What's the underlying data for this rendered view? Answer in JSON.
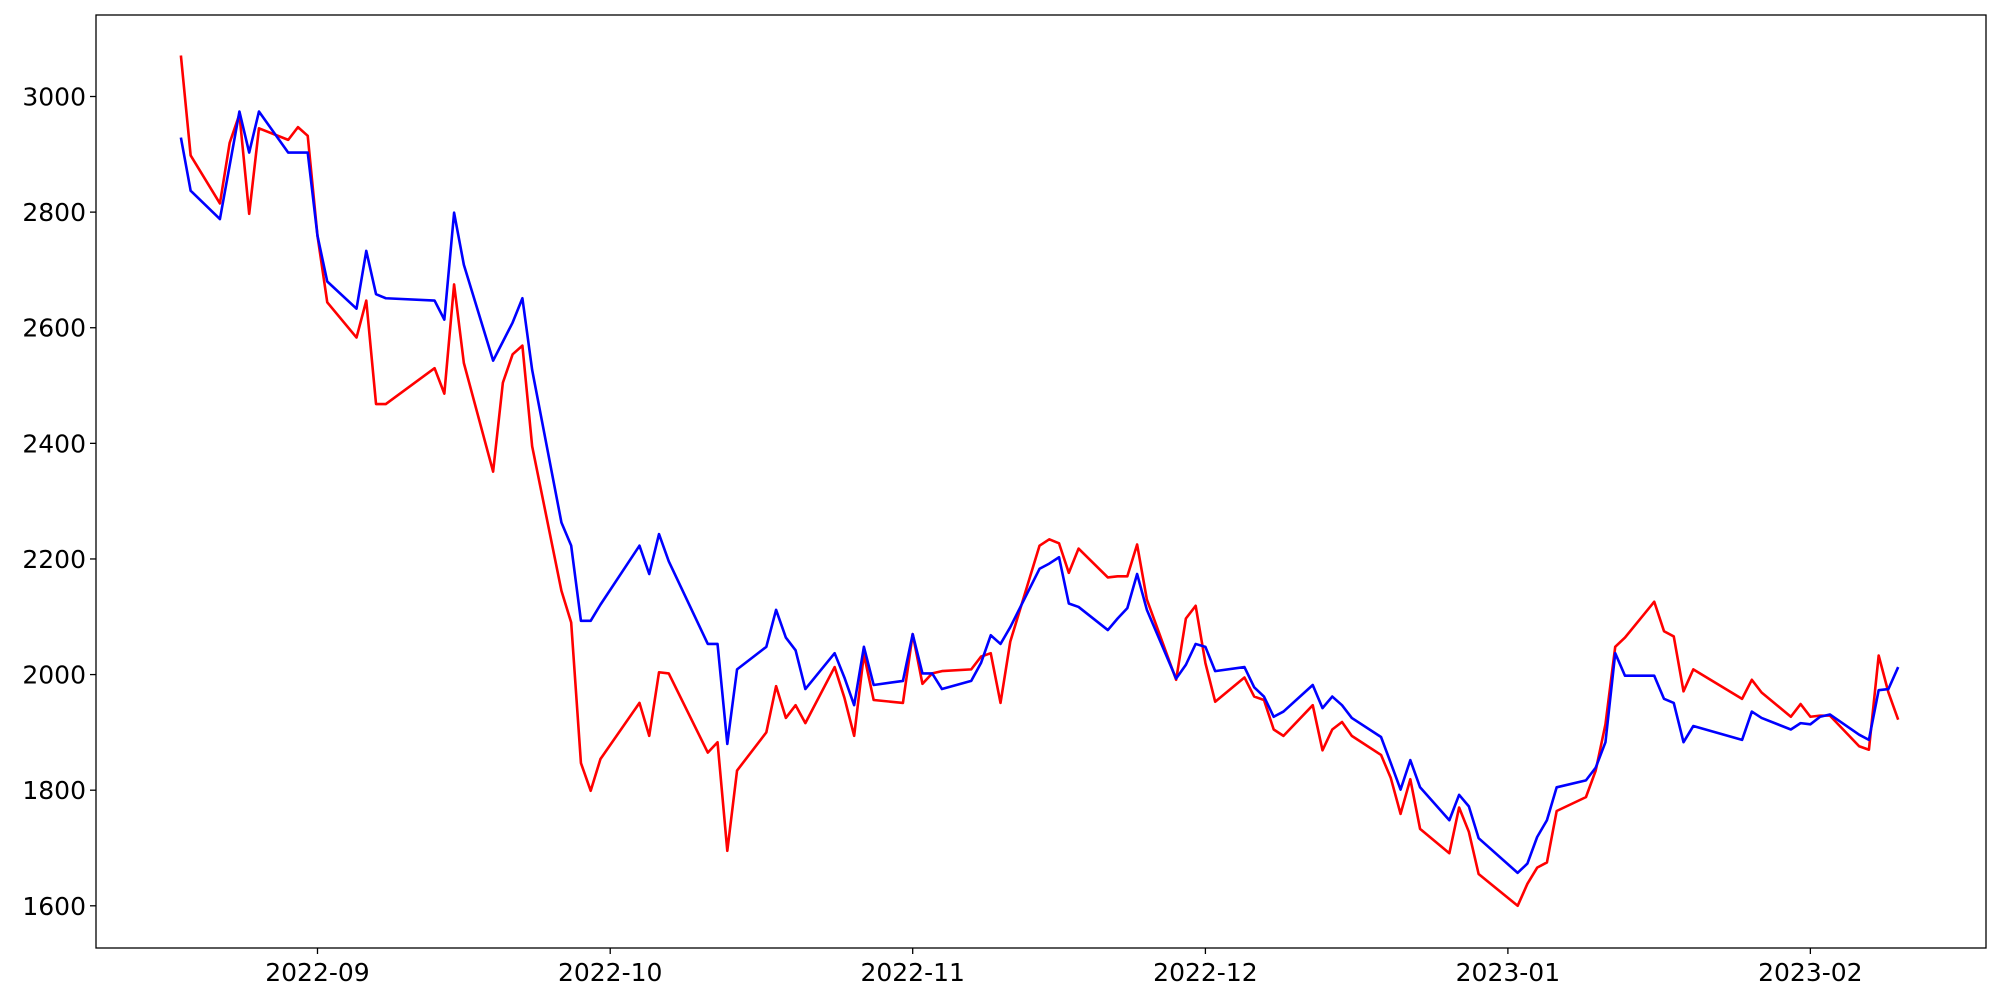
{
  "chart_data": {
    "type": "line",
    "x": [
      19222,
      19223,
      19226,
      19227,
      19228,
      19229,
      19230,
      19233,
      19234,
      19235,
      19236,
      19237,
      19240,
      19241,
      19242,
      19243,
      19248,
      19249,
      19250,
      19251,
      19254,
      19255,
      19256,
      19257,
      19258,
      19261,
      19262,
      19263,
      19264,
      19265,
      19269,
      19270,
      19271,
      19272,
      19276,
      19277,
      19278,
      19279,
      19282,
      19283,
      19284,
      19285,
      19286,
      19289,
      19290,
      19291,
      19292,
      19293,
      19296,
      19297,
      19298,
      19299,
      19300,
      19303,
      19304,
      19305,
      19306,
      19307,
      19310,
      19311,
      19312,
      19313,
      19314,
      19317,
      19318,
      19319,
      19320,
      19321,
      19324,
      19325,
      19326,
      19327,
      19328,
      19331,
      19332,
      19333,
      19334,
      19335,
      19338,
      19339,
      19340,
      19341,
      19342,
      19345,
      19346,
      19347,
      19348,
      19349,
      19352,
      19353,
      19354,
      19355,
      19359,
      19360,
      19361,
      19362,
      19363,
      19366,
      19367,
      19368,
      19369,
      19370,
      19373,
      19374,
      19375,
      19376,
      19377,
      19382,
      19383,
      19384,
      19387,
      19388,
      19389,
      19390,
      19391,
      19394,
      19395,
      19396,
      19397,
      19398
    ],
    "series": [
      {
        "color": "#ff0000",
        "values": [
          3071,
          2898,
          2815,
          2920,
          2969,
          2797,
          2945,
          2925,
          2947,
          2932,
          2759,
          2644,
          2583,
          2647,
          2468,
          2468,
          2530,
          2486,
          2675,
          2539,
          2351,
          2505,
          2554,
          2569,
          2395,
          2145,
          2090,
          1847,
          1799,
          1854,
          1951,
          1894,
          2004,
          2002,
          1865,
          1883,
          1695,
          1834,
          1900,
          1980,
          1925,
          1947,
          1916,
          2013,
          1960,
          1894,
          2035,
          1956,
          1951,
          2070,
          1984,
          2002,
          2006,
          2009,
          2031,
          2037,
          1951,
          2057,
          2223,
          2234,
          2227,
          2176,
          2218,
          2168,
          2170,
          2170,
          2225,
          2130,
          1991,
          2097,
          2119,
          2020,
          1953,
          1995,
          1962,
          1956,
          1905,
          1894,
          1947,
          1869,
          1905,
          1918,
          1894,
          1861,
          1821,
          1759,
          1819,
          1733,
          1691,
          1770,
          1728,
          1655,
          1600,
          1638,
          1666,
          1675,
          1764,
          1788,
          1834,
          1914,
          2048,
          2064,
          2126,
          2075,
          2066,
          1971,
          2009,
          1958,
          1991,
          1969,
          1927,
          1949,
          1927,
          1929,
          1929,
          1876,
          1870,
          2033,
          1969,
          1922
        ]
      },
      {
        "color": "#0000ff",
        "values": [
          2929,
          2837,
          2788,
          2881,
          2974,
          2903,
          2974,
          2903,
          2903,
          2903,
          2759,
          2680,
          2633,
          2733,
          2658,
          2651,
          2647,
          2614,
          2799,
          2709,
          2543,
          2576,
          2609,
          2651,
          2527,
          2263,
          2223,
          2093,
          2093,
          2121,
          2223,
          2174,
          2243,
          2196,
          2053,
          2053,
          1880,
          2009,
          2048,
          2112,
          2064,
          2042,
          1975,
          2037,
          1995,
          1947,
          2048,
          1982,
          1989,
          2070,
          2002,
          2002,
          1975,
          1989,
          2020,
          2068,
          2053,
          2082,
          2183,
          2192,
          2203,
          2123,
          2117,
          2077,
          2097,
          2115,
          2174,
          2112,
          1993,
          2017,
          2053,
          2048,
          2006,
          2013,
          1978,
          1962,
          1927,
          1936,
          1982,
          1942,
          1962,
          1947,
          1925,
          1892,
          1847,
          1801,
          1852,
          1805,
          1748,
          1792,
          1772,
          1717,
          1657,
          1673,
          1719,
          1748,
          1805,
          1817,
          1839,
          1883,
          2037,
          1998,
          1998,
          1958,
          1951,
          1883,
          1911,
          1887,
          1936,
          1925,
          1905,
          1916,
          1914,
          1927,
          1931,
          1896,
          1887,
          1973,
          1975,
          2013
        ]
      }
    ],
    "xlim": [
      19213.3,
      19407
    ],
    "xticks": [
      {
        "value": 19236,
        "label": "2022-09"
      },
      {
        "value": 19266,
        "label": "2022-10"
      },
      {
        "value": 19297,
        "label": "2022-11"
      },
      {
        "value": 19327,
        "label": "2022-12"
      },
      {
        "value": 19358,
        "label": "2023-01"
      },
      {
        "value": 19389,
        "label": "2023-02"
      }
    ],
    "ylim": [
      1527,
      3141
    ],
    "yticks": [
      1600,
      1800,
      2000,
      2200,
      2400,
      2600,
      2800,
      3000
    ],
    "grid": false
  }
}
